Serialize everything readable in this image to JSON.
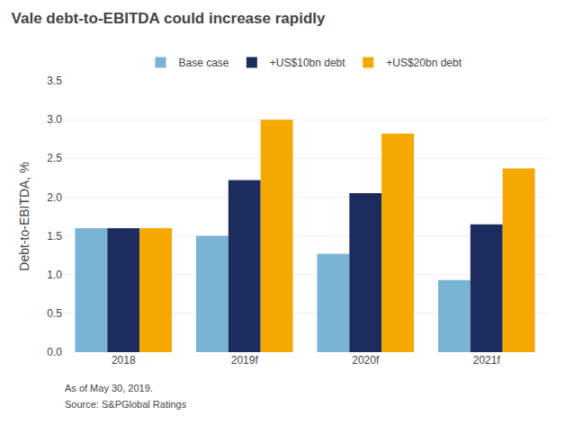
{
  "chart_data": {
    "type": "bar",
    "title": "Vale debt-to-EBITDA could increase rapidly",
    "categories": [
      "2018",
      "2019f",
      "2020f",
      "2021f"
    ],
    "series": [
      {
        "name": "Base case",
        "color": "#7ab4d4",
        "values": [
          1.6,
          1.5,
          1.27,
          0.93
        ]
      },
      {
        "name": "+US$10bn debt",
        "color": "#1b2d5e",
        "values": [
          1.6,
          2.22,
          2.05,
          1.65
        ]
      },
      {
        "name": "+US$20bn debt",
        "color": "#f5a800",
        "values": [
          1.6,
          3.0,
          2.82,
          2.37
        ]
      }
    ],
    "ylabel": "Debt-to-EBITDA, %",
    "ylim": [
      0,
      3.5
    ],
    "yticks": [
      {
        "value": 0.0,
        "label": "0.0"
      },
      0.5,
      {
        "value": 1.0,
        "label": "1.0"
      },
      1.5,
      {
        "value": 2.0,
        "label": "2.0"
      },
      2.5,
      {
        "value": 3.0,
        "label": "3.0"
      },
      3.5
    ],
    "grid": true,
    "legend": "top",
    "annotations": [
      "As of May 30, 2019.",
      "Source: S&PGlobal Ratings"
    ]
  }
}
